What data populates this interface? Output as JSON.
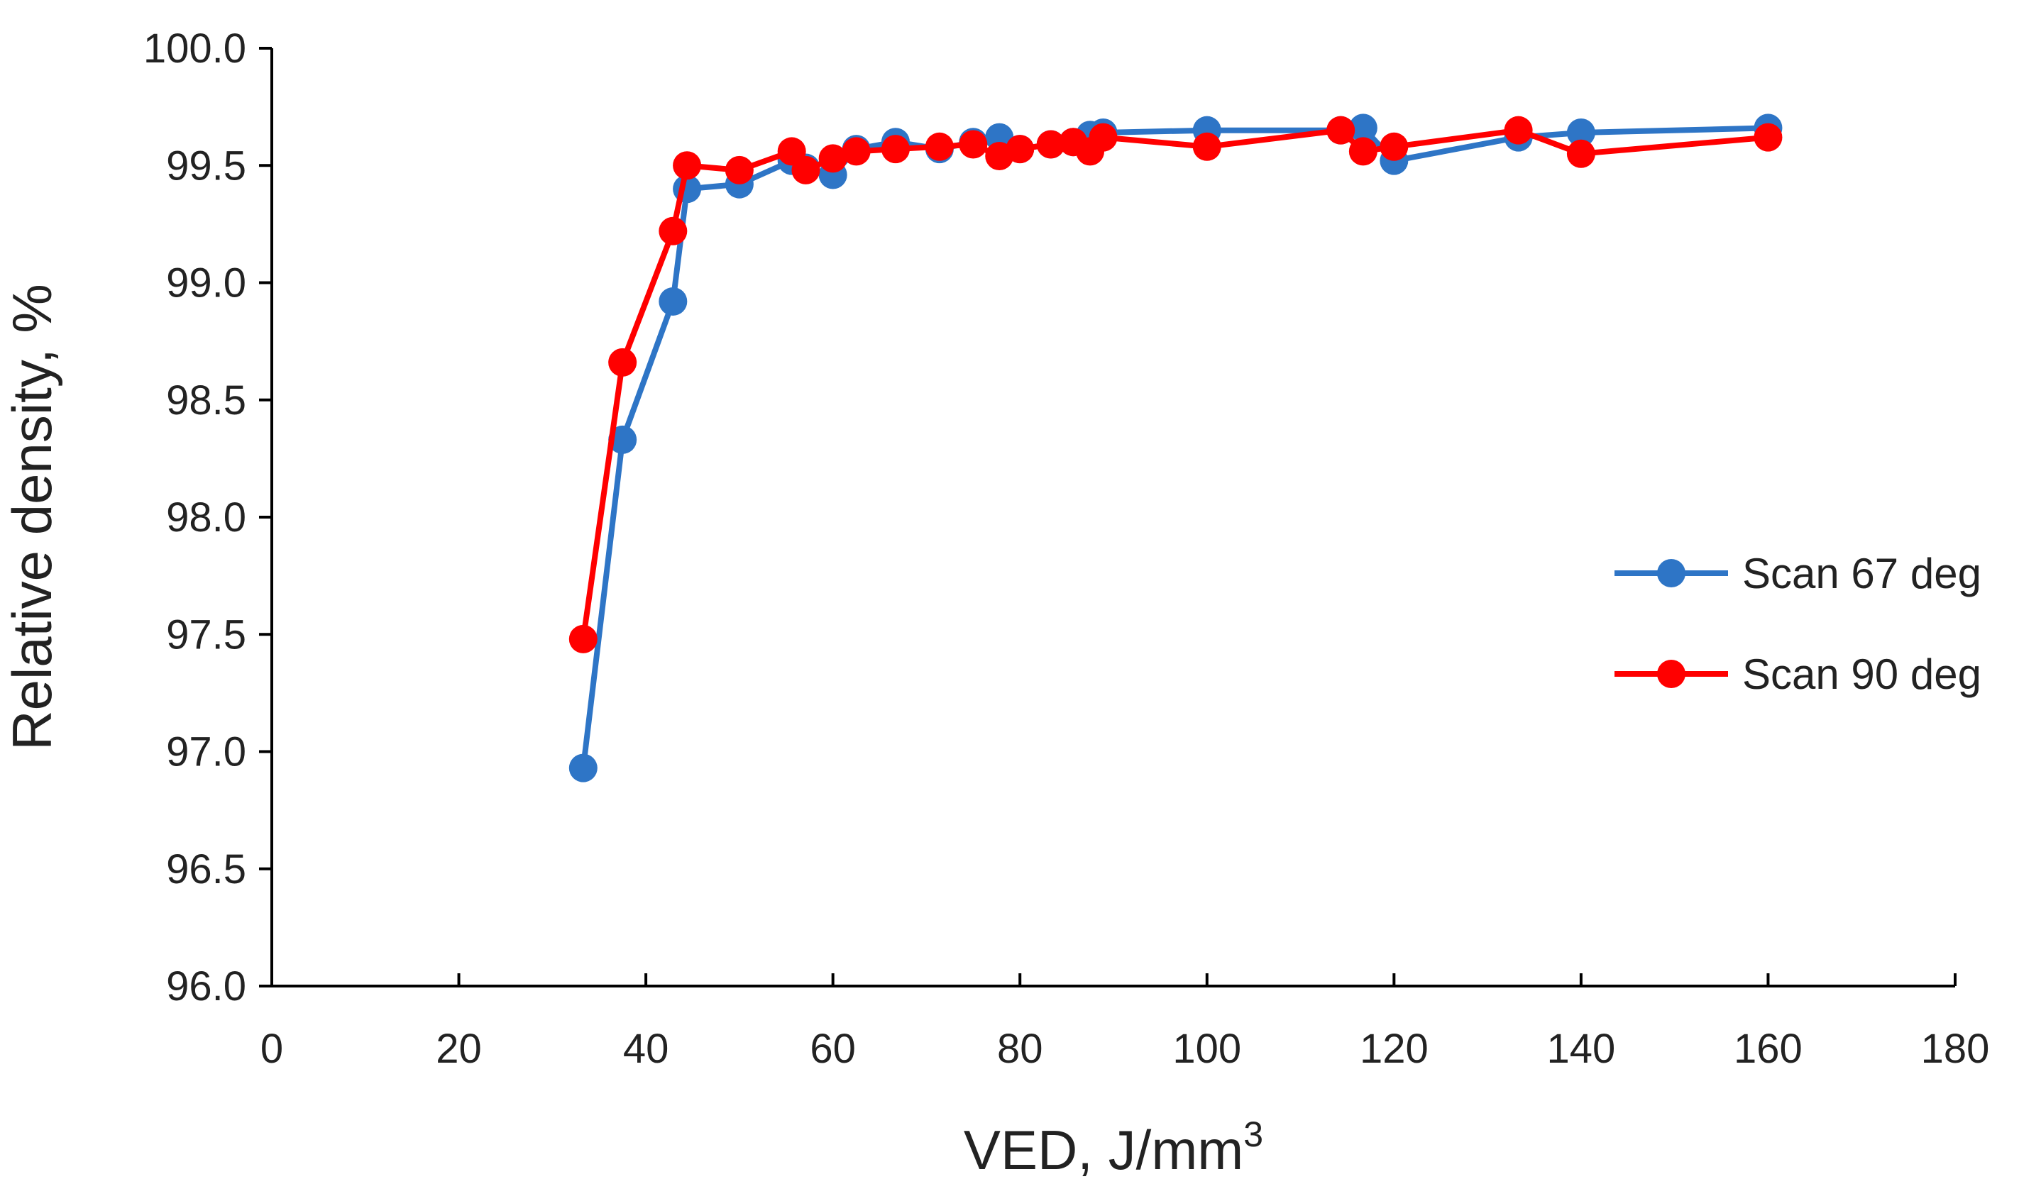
{
  "chart_data": {
    "type": "line",
    "title": "",
    "xlabel": "VED, J/mm",
    "xlabel_superscript": "3",
    "ylabel": "Relative density, %",
    "xlim": [
      0,
      180
    ],
    "ylim": [
      96.0,
      100.0
    ],
    "x_ticks": [
      0,
      20,
      40,
      60,
      80,
      100,
      120,
      140,
      160,
      180
    ],
    "x_tick_labels": [
      "0",
      "20",
      "40",
      "60",
      "80",
      "100",
      "120",
      "140",
      "160",
      "180"
    ],
    "y_ticks": [
      96.0,
      96.5,
      97.0,
      97.5,
      98.0,
      98.5,
      99.0,
      99.5,
      100.0
    ],
    "y_tick_labels": [
      "96.0",
      "96.5",
      "97.0",
      "97.5",
      "98.0",
      "98.5",
      "99.0",
      "99.5",
      "100.0"
    ],
    "grid": false,
    "legend_position": "right",
    "series": [
      {
        "name": "Scan 67 deg",
        "color": "#2E75C6",
        "x": [
          33.3,
          37.5,
          42.9,
          44.4,
          50,
          55.6,
          57.1,
          60,
          62.5,
          66.7,
          71.4,
          75,
          77.8,
          80,
          83.3,
          85.7,
          87.5,
          88.9,
          100,
          114.3,
          116.7,
          120,
          133.3,
          140,
          160
        ],
        "y": [
          96.93,
          98.33,
          98.92,
          99.4,
          99.42,
          99.52,
          99.49,
          99.46,
          99.57,
          99.6,
          99.57,
          99.6,
          99.62,
          99.57,
          99.59,
          99.6,
          99.63,
          99.64,
          99.65,
          99.65,
          99.66,
          99.52,
          99.62,
          99.64,
          99.66
        ]
      },
      {
        "name": "Scan 90 deg",
        "color": "#FF0000",
        "x": [
          33.3,
          37.5,
          42.9,
          44.4,
          50,
          55.6,
          57.1,
          60,
          62.5,
          66.7,
          71.4,
          75,
          77.8,
          80,
          83.3,
          85.7,
          87.5,
          88.9,
          100,
          114.3,
          116.7,
          120,
          133.3,
          140,
          160
        ],
        "y": [
          97.48,
          98.66,
          99.22,
          99.5,
          99.48,
          99.56,
          99.48,
          99.53,
          99.56,
          99.57,
          99.58,
          99.59,
          99.54,
          99.57,
          99.59,
          99.6,
          99.56,
          99.62,
          99.58,
          99.65,
          99.56,
          99.58,
          99.65,
          99.55,
          99.62
        ]
      }
    ]
  }
}
